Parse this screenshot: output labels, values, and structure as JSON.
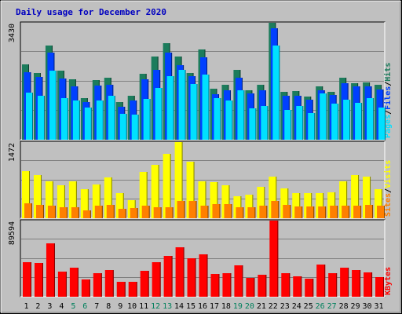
{
  "window": {
    "title": "Daily usage for December 2020"
  },
  "colors": {
    "background": "#c0c0c0",
    "plot": "#c0c0c0",
    "grid": "#808080",
    "hits": "#1c7c5c",
    "files": "#0040ff",
    "pages": "#00e0ff",
    "visits": "#ffff00",
    "sites": "#ff8000",
    "kbytes": "#ff0000",
    "weekday_label": "#000000",
    "weekend_label": "#00805c",
    "title": "#0000c0"
  },
  "chart_data": [
    {
      "type": "bar",
      "panel": "top",
      "title": "Daily usage for December 2020",
      "y_max_label": "3430",
      "ylim": [
        0,
        3430
      ],
      "legend": [
        {
          "text": "Pages",
          "color": "#00e0ff"
        },
        {
          "text": "/",
          "color": "#000000"
        },
        {
          "text": "Files",
          "color": "#0040ff"
        },
        {
          "text": "/",
          "color": "#000000"
        },
        {
          "text": "Hits",
          "color": "#1c7c5c"
        }
      ],
      "categories": [
        "1",
        "2",
        "3",
        "4",
        "5",
        "6",
        "7",
        "8",
        "9",
        "10",
        "11",
        "12",
        "13",
        "14",
        "15",
        "16",
        "17",
        "18",
        "19",
        "20",
        "21",
        "22",
        "23",
        "24",
        "25",
        "26",
        "27",
        "28",
        "29",
        "30",
        "31"
      ],
      "weekend_days": [
        "5",
        "6",
        "12",
        "13",
        "19",
        "20",
        "26",
        "27"
      ],
      "series": [
        {
          "name": "Hits",
          "values": [
            2200,
            1960,
            2760,
            2020,
            1780,
            1220,
            1760,
            1810,
            1100,
            1300,
            1930,
            2450,
            2840,
            2450,
            1950,
            2650,
            1500,
            1610,
            2050,
            1460,
            1610,
            3430,
            1410,
            1420,
            1270,
            1570,
            1400,
            1810,
            1660,
            1680,
            1620
          ]
        },
        {
          "name": "Files",
          "values": [
            1970,
            1850,
            2550,
            1800,
            1560,
            1100,
            1580,
            1610,
            970,
            1160,
            1770,
            2050,
            2560,
            2190,
            1860,
            2410,
            1340,
            1450,
            1810,
            1360,
            1460,
            3260,
            1290,
            1300,
            1180,
            1450,
            1310,
            1660,
            1560,
            1560,
            1470
          ]
        },
        {
          "name": "Pages",
          "values": [
            1380,
            1280,
            2030,
            1220,
            1160,
            940,
            1140,
            1280,
            760,
            740,
            1200,
            1530,
            1860,
            2060,
            1640,
            1900,
            1220,
            1160,
            1460,
            920,
            1000,
            2760,
            880,
            990,
            780,
            1350,
            1060,
            1180,
            1090,
            1230,
            950
          ]
        }
      ]
    },
    {
      "type": "bar",
      "panel": "middle",
      "y_max_label": "1472",
      "ylim": [
        0,
        1472
      ],
      "legend": [
        {
          "text": "Sites",
          "color": "#ff8000"
        },
        {
          "text": "/",
          "color": "#000000"
        },
        {
          "text": "Visits",
          "color": "#ffff00"
        }
      ],
      "categories": [
        "1",
        "2",
        "3",
        "4",
        "5",
        "6",
        "7",
        "8",
        "9",
        "10",
        "11",
        "12",
        "13",
        "14",
        "15",
        "16",
        "17",
        "18",
        "19",
        "20",
        "21",
        "22",
        "23",
        "24",
        "25",
        "26",
        "27",
        "28",
        "29",
        "30",
        "31"
      ],
      "series": [
        {
          "name": "Visits",
          "values": [
            910,
            840,
            710,
            640,
            720,
            560,
            650,
            790,
            490,
            350,
            900,
            1030,
            1240,
            1472,
            1100,
            720,
            700,
            630,
            420,
            460,
            600,
            800,
            580,
            480,
            480,
            490,
            500,
            710,
            840,
            800,
            560
          ]
        },
        {
          "name": "Sites",
          "values": [
            290,
            260,
            240,
            210,
            210,
            150,
            240,
            260,
            180,
            190,
            240,
            210,
            210,
            330,
            330,
            240,
            270,
            280,
            220,
            220,
            250,
            340,
            260,
            230,
            230,
            230,
            240,
            240,
            250,
            260,
            250
          ]
        }
      ]
    },
    {
      "type": "bar",
      "panel": "bottom",
      "y_max_label": "89594",
      "ylim": [
        0,
        89594
      ],
      "legend": [
        {
          "text": "KBytes",
          "color": "#ff0000"
        }
      ],
      "categories": [
        "1",
        "2",
        "3",
        "4",
        "5",
        "6",
        "7",
        "8",
        "9",
        "10",
        "11",
        "12",
        "13",
        "14",
        "15",
        "16",
        "17",
        "18",
        "19",
        "20",
        "21",
        "22",
        "23",
        "24",
        "25",
        "26",
        "27",
        "28",
        "29",
        "30",
        "31"
      ],
      "series": [
        {
          "name": "KBytes",
          "values": [
            40800,
            39800,
            62600,
            29500,
            34500,
            20700,
            27900,
            31200,
            17400,
            17400,
            30900,
            40800,
            48300,
            58300,
            45000,
            49500,
            27200,
            27300,
            37100,
            22300,
            25900,
            89594,
            27700,
            24100,
            21300,
            37800,
            27500,
            34200,
            31500,
            28500,
            23200
          ]
        }
      ]
    }
  ]
}
